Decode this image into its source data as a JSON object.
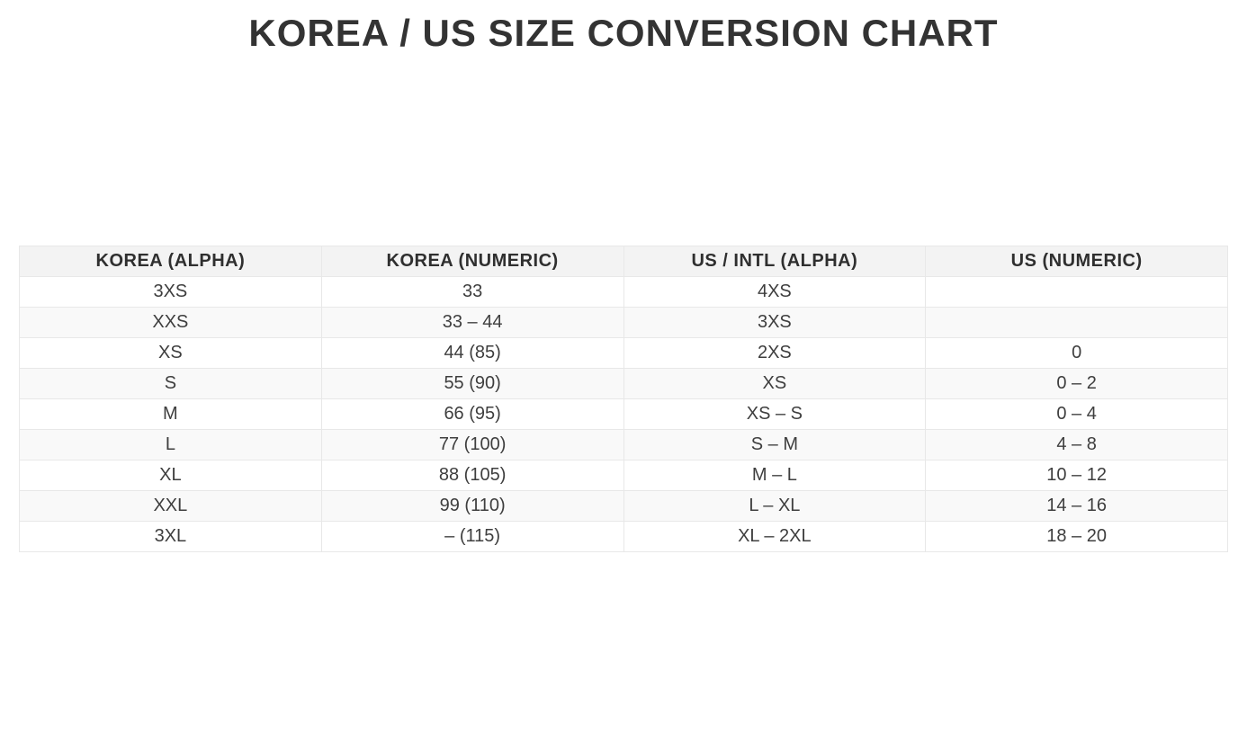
{
  "title": "KOREA / US SIZE CONVERSION CHART",
  "chart_data": {
    "type": "table",
    "title": "KOREA / US SIZE CONVERSION CHART",
    "columns": [
      "KOREA (ALPHA)",
      "KOREA (NUMERIC)",
      "US / INTL (ALPHA)",
      "US (NUMERIC)"
    ],
    "rows": [
      [
        "3XS",
        "33",
        "4XS",
        ""
      ],
      [
        "XXS",
        "33 – 44",
        "3XS",
        ""
      ],
      [
        "XS",
        "44 (85)",
        "2XS",
        "0"
      ],
      [
        "S",
        "55 (90)",
        "XS",
        "0 – 2"
      ],
      [
        "M",
        "66 (95)",
        "XS – S",
        "0 – 4"
      ],
      [
        "L",
        "77 (100)",
        "S – M",
        "4 – 8"
      ],
      [
        "XL",
        "88 (105)",
        "M – L",
        "10 – 12"
      ],
      [
        "XXL",
        "99 (110)",
        "L – XL",
        "14 – 16"
      ],
      [
        "3XL",
        "– (115)",
        "XL – 2XL",
        "18 – 20"
      ]
    ],
    "layout": {
      "grid": "on",
      "header_style": "shaded",
      "row_striping": true
    }
  },
  "colors": {
    "background": "#ffffff",
    "title_text": "#333333",
    "header_bg": "#f3f3f3",
    "header_text": "#2f2f2f",
    "cell_text": "#3e3e3e",
    "row_alt_bg": "#f9f9f9",
    "border": "#e8e8e8"
  }
}
